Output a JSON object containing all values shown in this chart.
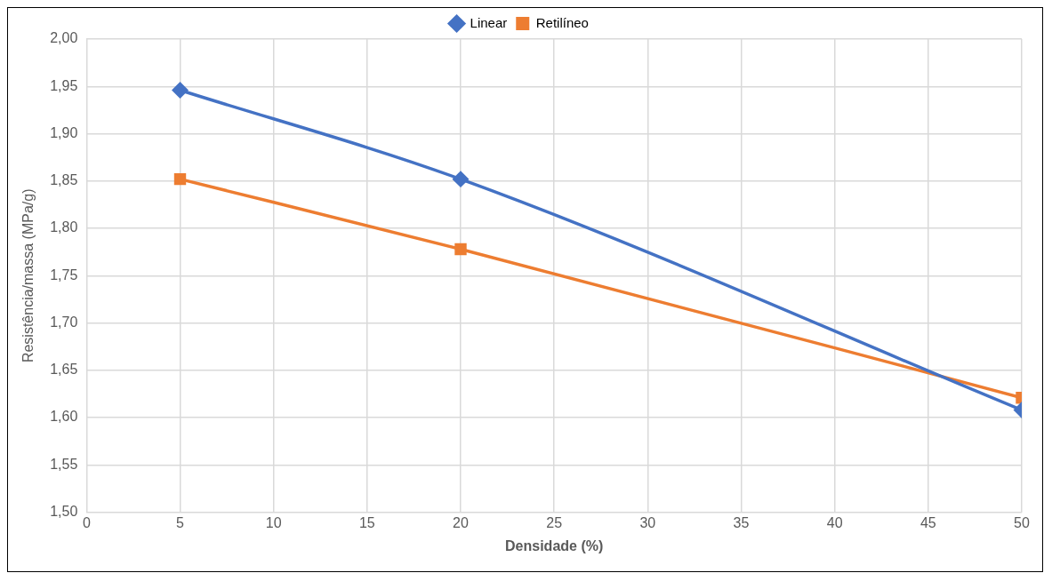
{
  "chart_data": {
    "type": "line",
    "xlabel": "Densidade (%)",
    "ylabel": "Resistência/massa (MPa/g)",
    "x": [
      5,
      20,
      50
    ],
    "series": [
      {
        "name": "Linear",
        "color": "#4472c4",
        "marker": "diamond",
        "values": [
          1.946,
          1.852,
          1.608
        ]
      },
      {
        "name": "Retilíneo",
        "color": "#ed7d31",
        "marker": "square",
        "values": [
          1.852,
          1.778,
          1.621
        ]
      }
    ],
    "xlim": [
      0,
      50
    ],
    "xticks": [
      0,
      5,
      10,
      15,
      20,
      25,
      30,
      35,
      40,
      45,
      50
    ],
    "ylim": [
      1.5,
      2.0
    ],
    "yticks": [
      {
        "value": 1.5,
        "label": "1,50"
      },
      {
        "value": 1.55,
        "label": "1,55"
      },
      {
        "value": 1.6,
        "label": "1,60"
      },
      {
        "value": 1.65,
        "label": "1,65"
      },
      {
        "value": 1.7,
        "label": "1,70"
      },
      {
        "value": 1.75,
        "label": "1,75"
      },
      {
        "value": 1.8,
        "label": "1,80"
      },
      {
        "value": 1.85,
        "label": "1,85"
      },
      {
        "value": 1.9,
        "label": "1,90"
      },
      {
        "value": 1.95,
        "label": "1,95"
      },
      {
        "value": 2.0,
        "label": "2,00"
      }
    ],
    "grid": true,
    "legend": "top"
  }
}
